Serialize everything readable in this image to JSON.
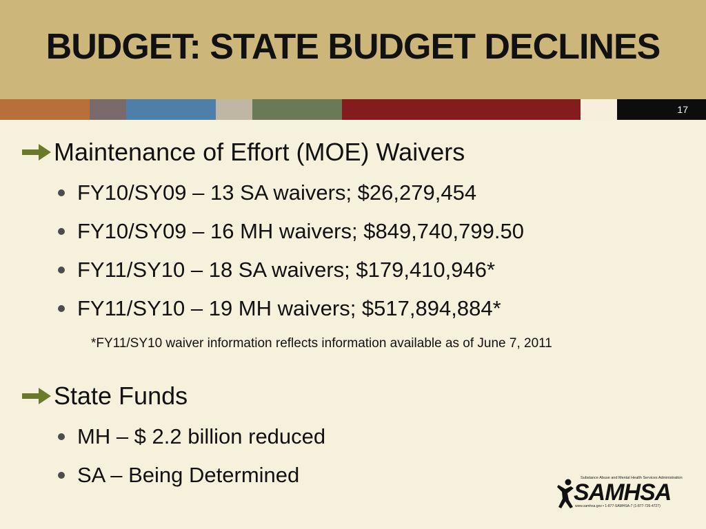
{
  "slide": {
    "title": "BUDGET:  STATE BUDGET DECLINES",
    "number": "17"
  },
  "stripe_colors": [
    "#b86f3a",
    "#7a6a6b",
    "#4d7fa9",
    "#bfb6a4",
    "#6a7956",
    "#841c1e",
    "#f5efdc",
    "#0d0d0d"
  ],
  "sections": [
    {
      "heading": "Maintenance of Effort (MOE) Waivers",
      "icon": "right-arrow-icon",
      "items": [
        "FY10/SY09 – 13 SA waivers; $26,279,454",
        "FY10/SY09 – 16 MH waivers; $849,740,799.50",
        "FY11/SY10 – 18 SA waivers; $179,410,946*",
        "FY11/SY10 – 19 MH waivers; $517,894,884*"
      ],
      "note": "*FY11/SY10 waiver information reflects information available as of June 7, 2011"
    },
    {
      "heading": "State Funds",
      "icon": "right-arrow-icon",
      "items": [
        "MH –  $ 2.2 billion reduced",
        "SA – Being Determined"
      ]
    }
  ],
  "logo": {
    "name": "SAMHSA",
    "tagline": "Substance Abuse and Mental Health Services Administration",
    "contact": "www.samhsa.gov • 1-877-SAMHSA-7 (1-877-726-4727)"
  }
}
